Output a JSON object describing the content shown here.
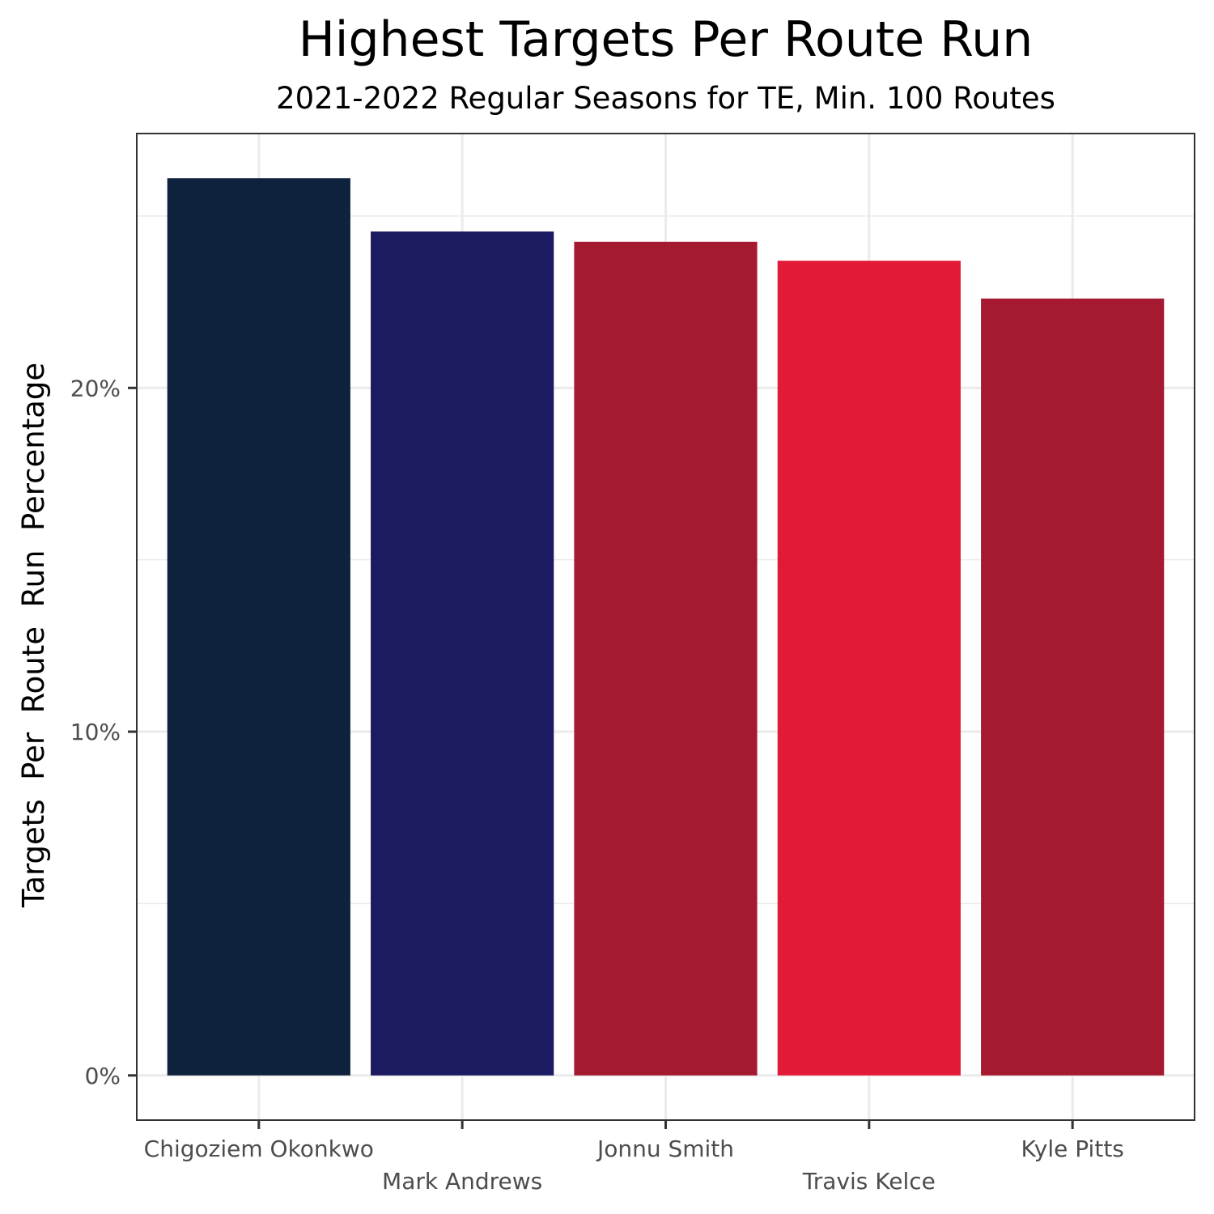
{
  "chart_data": {
    "type": "bar",
    "title": "Highest Targets Per Route Run",
    "subtitle": "2021-2022 Regular Seasons for TE, Min. 100 Routes",
    "xlabel": "",
    "ylabel": "Targets  Per  Route  Run  Percentage",
    "categories": [
      "Chigoziem Okonkwo",
      "Mark Andrews",
      "Jonnu Smith",
      "Travis Kelce",
      "Kyle Pitts"
    ],
    "values": [
      26.1,
      24.55,
      24.25,
      23.7,
      22.6
    ],
    "colors": [
      "#0e223e",
      "#1c1a60",
      "#a51931",
      "#e21a37",
      "#a51931"
    ],
    "yunit": "%",
    "ylim": [
      -1.3,
      27.4
    ],
    "yticks": [
      0,
      10,
      20
    ],
    "ytick_labels": [
      "0%",
      "10%",
      "20%"
    ],
    "grid": true,
    "legend": "none"
  }
}
